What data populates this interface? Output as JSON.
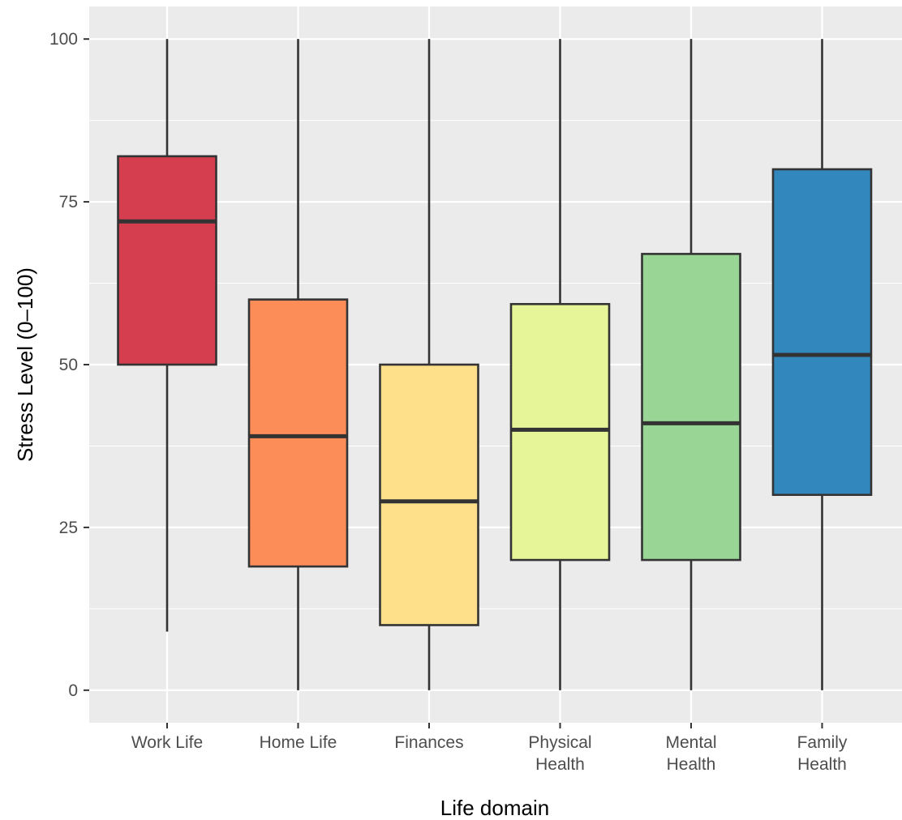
{
  "chart_data": {
    "type": "boxplot",
    "title": "",
    "xlabel": "Life domain",
    "ylabel": "Stress Level (0–100)",
    "ylim": [
      -5,
      105
    ],
    "yticks": [
      0,
      25,
      50,
      75,
      100
    ],
    "grid": true,
    "legend": "none",
    "categories": [
      {
        "label": "Work Life",
        "lines": [
          "Work Life"
        ],
        "min": 9,
        "q1": 50,
        "median": 72,
        "q3": 82,
        "max": 100,
        "color": "#D53E4F"
      },
      {
        "label": "Home Life",
        "lines": [
          "Home Life"
        ],
        "min": 0,
        "q1": 19,
        "median": 39,
        "q3": 60,
        "max": 100,
        "color": "#FC8D59"
      },
      {
        "label": "Finances",
        "lines": [
          "Finances"
        ],
        "min": 0,
        "q1": 10,
        "median": 29,
        "q3": 50,
        "max": 100,
        "color": "#FEE08B"
      },
      {
        "label": "Physical Health",
        "lines": [
          "Physical",
          "Health"
        ],
        "min": 0,
        "q1": 20,
        "median": 40,
        "q3": 59.3,
        "max": 100,
        "color": "#E6F598"
      },
      {
        "label": "Mental Health",
        "lines": [
          "Mental",
          "Health"
        ],
        "min": 0,
        "q1": 20,
        "median": 41,
        "q3": 67,
        "max": 100,
        "color": "#99D594"
      },
      {
        "label": "Family Health",
        "lines": [
          "Family",
          "Health"
        ],
        "min": 0,
        "q1": 30,
        "median": 51.5,
        "q3": 80,
        "max": 100,
        "color": "#3288BD"
      }
    ],
    "colors": {
      "panel_background": "#EBEBEB",
      "grid_major": "#FFFFFF",
      "box_outline": "#333333"
    }
  }
}
